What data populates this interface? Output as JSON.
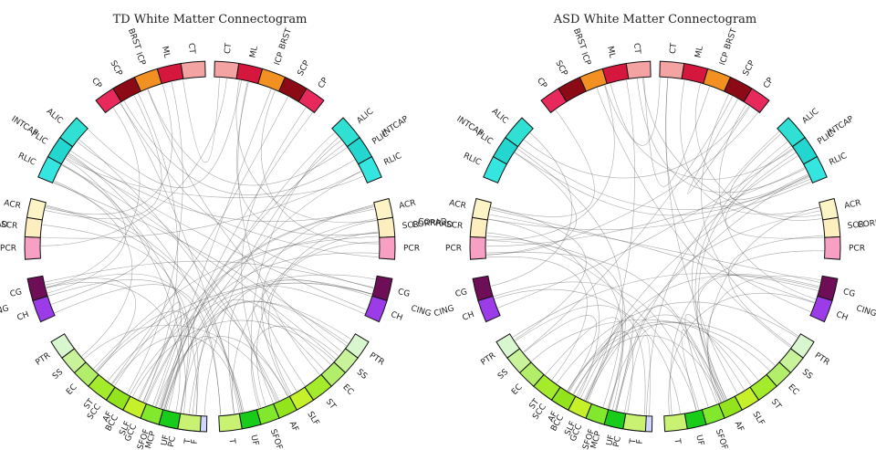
{
  "panels": [
    {
      "title": "TD White Matter Connectogram",
      "seed": 7,
      "chords": 80
    },
    {
      "title": "ASD White Matter Connectogram",
      "seed": 19,
      "chords": 72
    }
  ],
  "segments": [
    {
      "label": "CT",
      "color": "#f4a3a3"
    },
    {
      "label": "ML",
      "color": "#d5163d"
    },
    {
      "label": "ICP",
      "color": "#f29021"
    },
    {
      "label": "SCP",
      "color": "#8b0a16"
    },
    {
      "label": "CP",
      "color": "#e8295c"
    },
    {
      "label": "ALIC",
      "color": "#2fe0d3"
    },
    {
      "label": "PLIC",
      "color": "#23d6d0"
    },
    {
      "label": "RLIC",
      "color": "#35e6e0"
    },
    {
      "label": "ACR",
      "color": "#fdf4c6"
    },
    {
      "label": "SCR",
      "color": "#fdeec0"
    },
    {
      "label": "PCR",
      "color": "#f7a0c4"
    },
    {
      "label": "CG",
      "color": "#6d0e57"
    },
    {
      "label": "CH",
      "color": "#9b3ce8"
    },
    {
      "label": "PTR",
      "color": "#d9f7cf"
    },
    {
      "label": "SS",
      "color": "#c9f39b"
    },
    {
      "label": "EC",
      "color": "#b3ee6b"
    },
    {
      "label": "ST",
      "color": "#a4ec2b"
    },
    {
      "label": "AF",
      "color": "#93e41c"
    },
    {
      "label": "SLF",
      "color": "#c6f02a"
    },
    {
      "label": "SFOF",
      "color": "#82e82d"
    },
    {
      "label": "UF",
      "color": "#19cc1a"
    },
    {
      "label": "T",
      "color": "#c9f272"
    },
    {
      "label": "F",
      "color": "#cfd6ff"
    },
    {
      "label": "PC",
      "color": "#6f86ef"
    },
    {
      "label": "MCP",
      "color": "#8aa9ef"
    },
    {
      "label": "GCC",
      "color": "#23aee8"
    },
    {
      "label": "BCC",
      "color": "#1e3fd8"
    },
    {
      "label": "SCC",
      "color": "#1a1295"
    }
  ],
  "groups": [
    "BRST",
    "INTCAP",
    "CORRAD",
    "CING"
  ]
}
